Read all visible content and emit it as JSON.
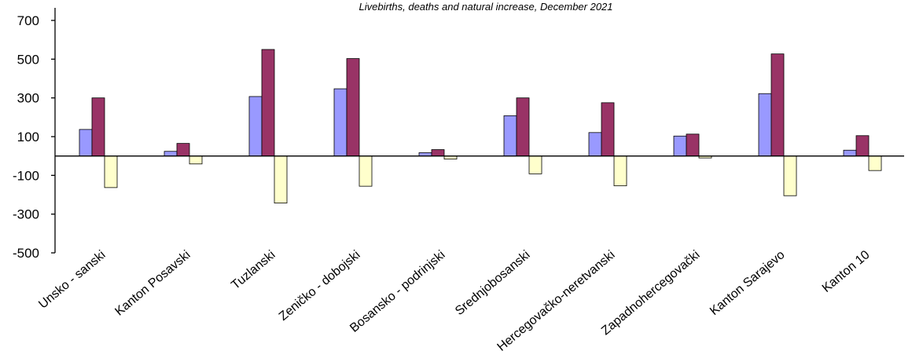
{
  "chart_data": {
    "type": "bar",
    "title": "Livebirths,  deaths and natural increase, December  2021",
    "xlabel": "",
    "ylabel": "",
    "ylim": [
      -500,
      750
    ],
    "yticks": [
      700,
      500,
      300,
      100,
      -100,
      -300,
      -500
    ],
    "categories": [
      "Unsko - sanski",
      "Kanton Posavski",
      "Tuzlanski",
      "Zeničko - dobojski",
      "Bosansko - podrinjski",
      "Srednjobosanski",
      "Hercegovačko-neretvanski",
      "Zapadnohercegovački",
      "Kanton Sarajevo",
      "Kanton 10"
    ],
    "series": [
      {
        "color": "#9999ff",
        "values": [
          137,
          24,
          307,
          347,
          17,
          208,
          121,
          103,
          322,
          30
        ]
      },
      {
        "color": "#993366",
        "values": [
          300,
          65,
          550,
          503,
          33,
          300,
          275,
          113,
          527,
          105
        ]
      },
      {
        "color": "#ffffcc",
        "values": [
          -163,
          -41,
          -243,
          -156,
          -16,
          -92,
          -154,
          -10,
          -205,
          -75
        ]
      }
    ],
    "grid": false,
    "legend": "none"
  }
}
